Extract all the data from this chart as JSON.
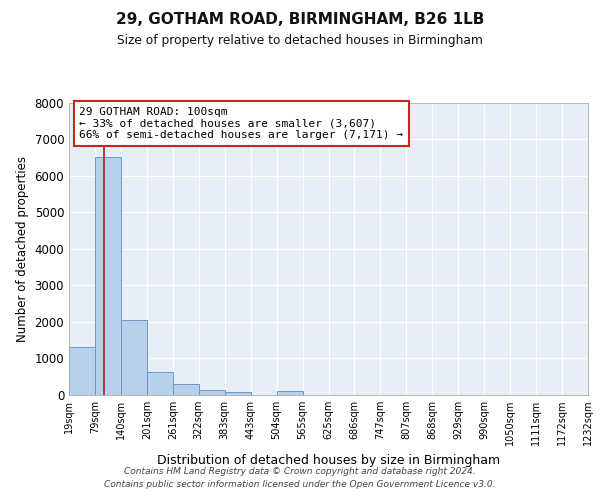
{
  "title1": "29, GOTHAM ROAD, BIRMINGHAM, B26 1LB",
  "title2": "Size of property relative to detached houses in Birmingham",
  "xlabel": "Distribution of detached houses by size in Birmingham",
  "ylabel": "Number of detached properties",
  "bin_labels": [
    "19sqm",
    "79sqm",
    "140sqm",
    "201sqm",
    "261sqm",
    "322sqm",
    "383sqm",
    "443sqm",
    "504sqm",
    "565sqm",
    "625sqm",
    "686sqm",
    "747sqm",
    "807sqm",
    "868sqm",
    "929sqm",
    "990sqm",
    "1050sqm",
    "1111sqm",
    "1172sqm",
    "1232sqm"
  ],
  "bar_heights": [
    1300,
    6500,
    2050,
    620,
    290,
    140,
    80,
    0,
    100,
    0,
    0,
    0,
    0,
    0,
    0,
    0,
    0,
    0,
    0,
    0
  ],
  "bar_color": "#b8d0ea",
  "bar_edge_color": "#6699cc",
  "ylim_max": 8000,
  "yticks": [
    0,
    1000,
    2000,
    3000,
    4000,
    5000,
    6000,
    7000,
    8000
  ],
  "property_line_color": "#aa2222",
  "property_sqm": 100,
  "bin_lo": 79,
  "bin_hi": 140,
  "bin_index": 1,
  "annotation_title": "29 GOTHAM ROAD: 100sqm",
  "annotation_line1": "← 33% of detached houses are smaller (3,607)",
  "annotation_line2": "66% of semi-detached houses are larger (7,171) →",
  "annotation_edge_color": "#cc2222",
  "footnote1": "Contains HM Land Registry data © Crown copyright and database right 2024.",
  "footnote2": "Contains public sector information licensed under the Open Government Licence v3.0.",
  "bg_color": "#e8eef8",
  "grid_color": "#ffffff",
  "spine_color": "#aaaaaa"
}
